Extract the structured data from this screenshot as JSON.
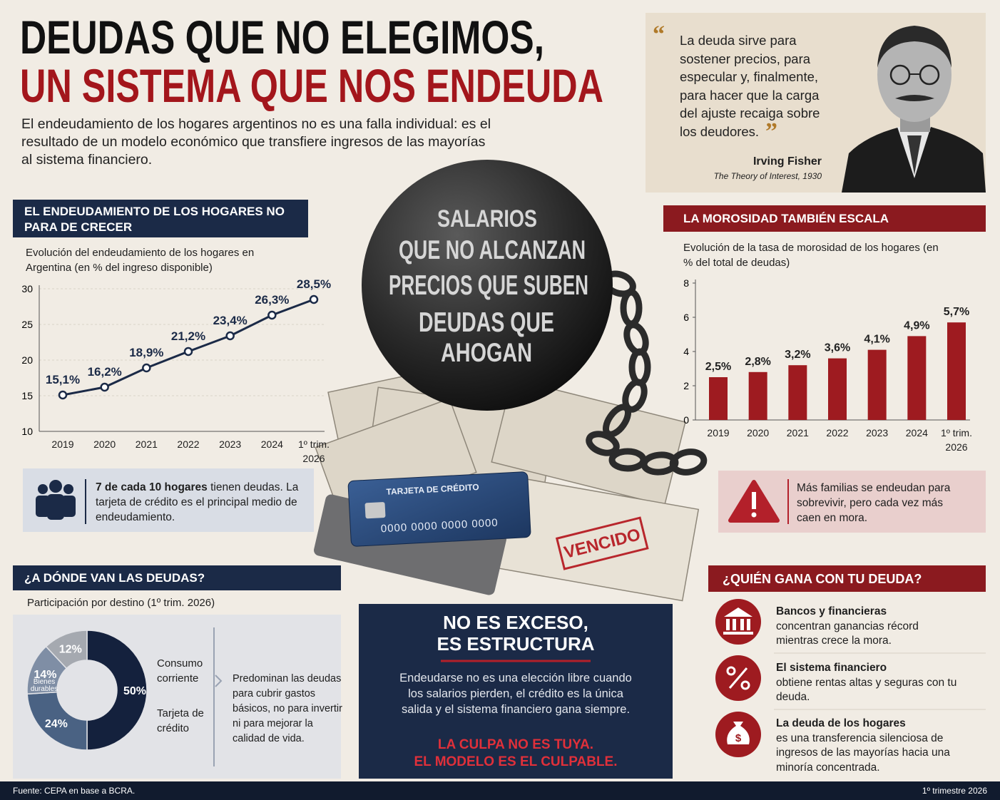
{
  "header": {
    "title_line1": "DEUDAS QUE NO ELEGIMOS,",
    "title_line2": "UN SISTEMA QUE NOS ENDEUDA",
    "intro": "El endeudamiento de los hogares argentinos no es una falla individual: es el resultado de un modelo económico que transfiere ingresos de las mayorías al sistema financiero."
  },
  "quote": {
    "open_mark": "“",
    "text": "La deuda sirve para sostener precios, para especular y, finalmente, para hacer que la carga del ajuste recaiga sobre los deudores.",
    "close_mark": "”",
    "author": "Irving Fisher",
    "source": "The Theory of Interest, 1930"
  },
  "illustration": {
    "ball_lines": [
      "SALARIOS",
      "QUE NO ALCANZAN",
      "PRECIOS QUE SUBEN",
      "DEUDAS QUE",
      "AHOGAN"
    ],
    "card_label": "TARJETA DE CRÉDITO",
    "card_number": "0000 0000 0000 0000",
    "stamp": "VENCIDO"
  },
  "chart_data": [
    {
      "type": "line",
      "title": "EL ENDEUDAMIENTO DE LOS HOGARES NO PARA DE CRECER",
      "subtitle": "Evolución del endeudamiento de los hogares en Argentina (en % del ingreso disponible)",
      "categories": [
        "2019",
        "2020",
        "2021",
        "2022",
        "2023",
        "2024",
        "1º trim. 2026"
      ],
      "values": [
        15.1,
        16.2,
        18.9,
        21.2,
        23.4,
        26.3,
        28.5
      ],
      "value_labels": [
        "15,1%",
        "16,2%",
        "18,9%",
        "21,2%",
        "23,4%",
        "26,3%",
        "28,5%"
      ],
      "color": "#1b2a47",
      "ylim": [
        10,
        30
      ],
      "yticks": [
        10,
        15,
        20,
        25,
        30
      ],
      "grid": true
    },
    {
      "type": "bar",
      "title": "LA MOROSIDAD TAMBIÉN ESCALA",
      "subtitle": "Evolución de la tasa de morosidad de los hogares (en % del total de deudas)",
      "categories": [
        "2019",
        "2020",
        "2021",
        "2022",
        "2023",
        "2024",
        "1º trim. 2026"
      ],
      "values": [
        2.5,
        2.8,
        3.2,
        3.6,
        4.1,
        4.9,
        5.7
      ],
      "value_labels": [
        "2,5%",
        "2,8%",
        "3,2%",
        "3,6%",
        "4,1%",
        "4,9%",
        "5,7%"
      ],
      "color": "#9e1b20",
      "ylim": [
        0,
        8
      ],
      "yticks": [
        0,
        2,
        4,
        6,
        8
      ],
      "grid": false
    },
    {
      "type": "pie",
      "title": "¿A DÓNDE VAN LAS DEUDAS?",
      "subtitle": "Participación por destino (1º trim. 2026)",
      "categories": [
        "Consumo corriente",
        "Tarjeta de crédito",
        "Bienes durables",
        null
      ],
      "values": [
        50,
        24,
        14,
        12
      ],
      "value_labels": [
        "50%",
        "24%",
        "14%",
        "12%"
      ],
      "colors": [
        "#14213d",
        "#4a6283",
        "#7f8ea5",
        "#a5a9b0"
      ]
    }
  ],
  "line_note": {
    "bold": "7 de cada 10 hogares",
    "text": " tienen deudas. La tarjeta de crédito es el principal medio de endeudamiento."
  },
  "bar_note": "Más familias se endeudan para sobrevivir, pero cada vez más caen en mora.",
  "pie_note": "Predominan las deudas para cubrir gastos básicos, no para invertir ni para mejorar la calidad de vida.",
  "conclusion": {
    "title_lines": [
      "NO ES EXCESO,",
      "ES ESTRUCTURA"
    ],
    "text": "Endeudarse no es una elección libre cuando los salarios pierden, el crédito es la única salida y el sistema financiero gana siempre.",
    "highlight_lines": [
      "LA CULPA NO ES TUYA.",
      "EL MODELO ES EL CULPABLE."
    ]
  },
  "winners": {
    "title": "¿QUIÉN GANA CON TU DEUDA?",
    "items": [
      {
        "bold": "Bancos y financieras",
        "text": "concentran ganancias récord mientras crece la mora."
      },
      {
        "bold": "El sistema financiero",
        "text": "obtiene rentas altas y seguras con tu deuda."
      },
      {
        "bold": "La deuda de los hogares",
        "text": "es una transferencia silenciosa de ingresos de las mayorías hacia una minoría concentrada."
      }
    ]
  },
  "footer": {
    "source": "Fuente: CEPA en base a BCRA.",
    "period": "1º trimestre 2026"
  }
}
